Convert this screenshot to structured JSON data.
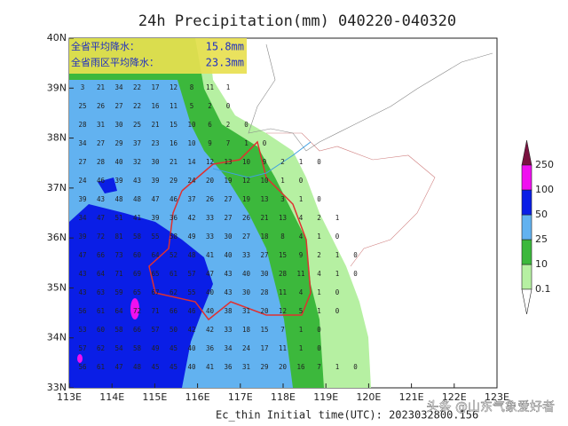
{
  "map": {
    "title": "24h Precipitation(mm) 040220-040320",
    "info": [
      {
        "label": "全省平均降水：",
        "value": "15.8mm"
      },
      {
        "label": "全省雨区平均降水：",
        "value": "23.3mm"
      }
    ],
    "lonlim": [
      113,
      123
    ],
    "latlim": [
      33,
      40
    ],
    "lonticks": [
      {
        "value": 113,
        "label": "113E"
      },
      {
        "value": 114,
        "label": "114E"
      },
      {
        "value": 115,
        "label": "115E"
      },
      {
        "value": 116,
        "label": "116E"
      },
      {
        "value": 117,
        "label": "117E"
      },
      {
        "value": 118,
        "label": "118E"
      },
      {
        "value": 119,
        "label": "119E"
      },
      {
        "value": 120,
        "label": "120E"
      },
      {
        "value": 121,
        "label": "121E"
      },
      {
        "value": 122,
        "label": "122E"
      },
      {
        "value": 123,
        "label": "123E"
      }
    ],
    "latticks": [
      {
        "value": 33,
        "label": "33N"
      },
      {
        "value": 34,
        "label": "34N"
      },
      {
        "value": 35,
        "label": "35N"
      },
      {
        "value": 36,
        "label": "36N"
      },
      {
        "value": 37,
        "label": "37N"
      },
      {
        "value": 38,
        "label": "38N"
      },
      {
        "value": 39,
        "label": "39N"
      },
      {
        "value": 40,
        "label": "40N"
      }
    ],
    "legend": {
      "levels": [
        0.1,
        10,
        25,
        50,
        100,
        250
      ],
      "colors": [
        "#b6f0a2",
        "#3cb83c",
        "#62b2f0",
        "#0a1ee6",
        "#f010f0",
        "#7a1240"
      ]
    },
    "stations": [
      [
        "3",
        "21",
        "34",
        "22",
        "17",
        "12",
        "8",
        "11",
        "1"
      ],
      [
        "25",
        "26",
        "27",
        "22",
        "16",
        "11",
        "5",
        "2",
        "0"
      ],
      [
        "28",
        "31",
        "30",
        "25",
        "21",
        "15",
        "10",
        "6",
        "2",
        "0"
      ],
      [
        "34",
        "27",
        "29",
        "37",
        "23",
        "16",
        "10",
        "9",
        "7",
        "1",
        "0"
      ],
      [
        "27",
        "28",
        "40",
        "32",
        "30",
        "21",
        "14",
        "12",
        "13",
        "10",
        "9",
        "2",
        "1",
        "0"
      ],
      [
        "24",
        "46",
        "39",
        "43",
        "39",
        "29",
        "24",
        "20",
        "19",
        "12",
        "10",
        "1",
        "0"
      ],
      [
        "39",
        "43",
        "48",
        "48",
        "47",
        "46",
        "37",
        "26",
        "27",
        "19",
        "13",
        "3",
        "1",
        "0"
      ],
      [
        "34",
        "47",
        "51",
        "41",
        "39",
        "36",
        "42",
        "33",
        "27",
        "26",
        "21",
        "13",
        "4",
        "2",
        "1"
      ],
      [
        "39",
        "72",
        "81",
        "58",
        "55",
        "58",
        "49",
        "33",
        "30",
        "27",
        "18",
        "8",
        "4",
        "1",
        "0"
      ],
      [
        "47",
        "66",
        "73",
        "60",
        "64",
        "52",
        "48",
        "41",
        "40",
        "33",
        "27",
        "15",
        "9",
        "2",
        "1",
        "0"
      ],
      [
        "43",
        "64",
        "71",
        "69",
        "65",
        "61",
        "57",
        "47",
        "43",
        "40",
        "30",
        "28",
        "11",
        "4",
        "1",
        "0"
      ],
      [
        "43",
        "63",
        "59",
        "65",
        "67",
        "62",
        "55",
        "40",
        "43",
        "30",
        "28",
        "11",
        "4",
        "1",
        "0"
      ],
      [
        "56",
        "61",
        "64",
        "72",
        "71",
        "66",
        "46",
        "40",
        "38",
        "31",
        "20",
        "12",
        "5",
        "1",
        "0"
      ],
      [
        "53",
        "60",
        "58",
        "66",
        "57",
        "50",
        "42",
        "42",
        "33",
        "18",
        "15",
        "7",
        "1",
        "0"
      ],
      [
        "57",
        "62",
        "54",
        "58",
        "49",
        "45",
        "40",
        "36",
        "34",
        "24",
        "17",
        "11",
        "1",
        "0"
      ],
      [
        "56",
        "61",
        "47",
        "48",
        "45",
        "45",
        "40",
        "41",
        "36",
        "31",
        "29",
        "20",
        "16",
        "7",
        "1",
        "0"
      ]
    ],
    "footer": "Ec_thin   Initial time(UTC): 2023032800.156",
    "watermark": "头条 @山东气象爱好者"
  }
}
